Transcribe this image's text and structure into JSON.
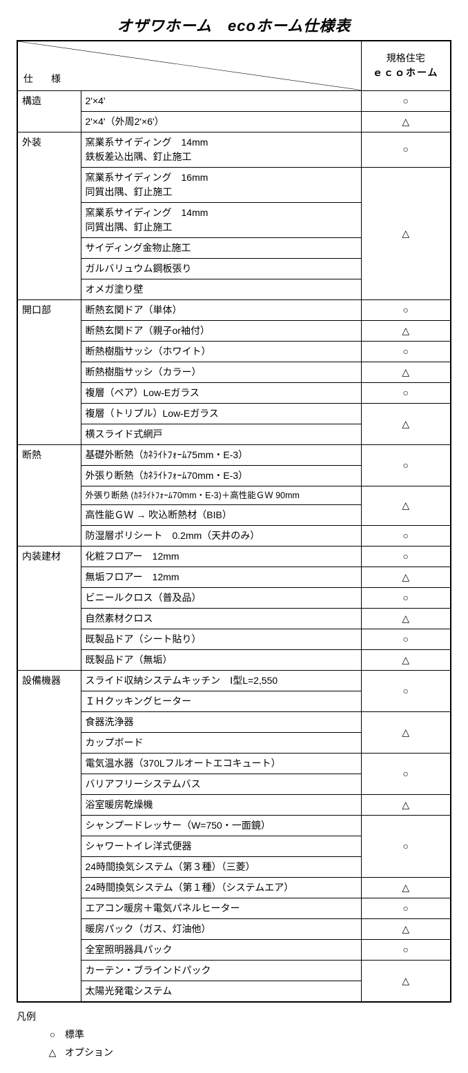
{
  "title": "オザワホーム　ecoホーム仕様表",
  "header": {
    "spec_label": "仕　様",
    "plan_line1": "規格住宅",
    "plan_line2": "ｅｃｏホーム"
  },
  "symbols": {
    "std": "○",
    "opt": "△"
  },
  "sections": [
    {
      "category": "構造",
      "rows": [
        {
          "desc": [
            "2'×4'"
          ],
          "value_sym": "std"
        },
        {
          "desc": [
            "2'×4'（外周2'×6'）"
          ],
          "value_sym": "opt"
        }
      ]
    },
    {
      "category": "外装",
      "rows": [
        {
          "desc": [
            "窯業系サイディング　14mm",
            "鉄板差込出隅、釘止施工"
          ],
          "value_sym": "std"
        },
        {
          "group": [
            [
              "窯業系サイディング　16mm",
              "同質出隅、釘止施工"
            ],
            [
              "窯業系サイディング　14mm",
              "同質出隅、釘止施工"
            ],
            [
              "サイディング金物止施工"
            ],
            [
              "ガルバリュウム鋼板張り"
            ],
            [
              "オメガ塗り壁"
            ]
          ],
          "value_sym": "opt"
        }
      ]
    },
    {
      "category": "開口部",
      "rows": [
        {
          "desc": [
            "断熱玄関ドア（単体）"
          ],
          "value_sym": "std"
        },
        {
          "desc": [
            "断熱玄関ドア（親子or袖付）"
          ],
          "value_sym": "opt"
        },
        {
          "desc": [
            "断熱樹脂サッシ（ホワイト）"
          ],
          "value_sym": "std"
        },
        {
          "desc": [
            "断熱樹脂サッシ（カラー）"
          ],
          "value_sym": "opt"
        },
        {
          "desc": [
            "複層（ペア）Low-Eガラス"
          ],
          "value_sym": "std"
        },
        {
          "group": [
            [
              "複層（トリプル）Low-Eガラス"
            ],
            [
              "横スライド式網戸"
            ]
          ],
          "value_sym": "opt"
        }
      ]
    },
    {
      "category": "断熱",
      "rows": [
        {
          "group": [
            [
              "基礎外断熱（ｶﾈﾗｲﾄﾌｫｰﾑ75mm・E-3）"
            ],
            [
              "外張り断熱（ｶﾈﾗｲﾄﾌｫｰﾑ70mm・E-3）"
            ]
          ],
          "value_sym": "std"
        },
        {
          "group": [
            [
              "外張り断熱 (ｶﾈﾗｲﾄﾌｫｰﾑ70mm・E-3)＋高性能ＧＷ 90mm"
            ],
            [
              "高性能ＧＷ → 吹込断熱材（BIB）"
            ]
          ],
          "value_sym": "opt",
          "small_first": true
        },
        {
          "desc": [
            "防湿層ポリシート　0.2mm（天井のみ）"
          ],
          "value_sym": "std"
        }
      ]
    },
    {
      "category": "内装建材",
      "rows": [
        {
          "desc": [
            "化粧フロアー　12mm"
          ],
          "value_sym": "std"
        },
        {
          "desc": [
            "無垢フロアー　12mm"
          ],
          "value_sym": "opt"
        },
        {
          "desc": [
            "ビニールクロス（普及品）"
          ],
          "value_sym": "std"
        },
        {
          "desc": [
            "自然素材クロス"
          ],
          "value_sym": "opt"
        },
        {
          "desc": [
            "既製品ドア（シート貼り）"
          ],
          "value_sym": "std"
        },
        {
          "desc": [
            "既製品ドア（無垢）"
          ],
          "value_sym": "opt"
        }
      ]
    },
    {
      "category": "設備機器",
      "rows": [
        {
          "group": [
            [
              "スライド収納システムキッチン　Ⅰ型L=2,550"
            ],
            [
              "ＩＨクッキングヒーター"
            ]
          ],
          "value_sym": "std"
        },
        {
          "group": [
            [
              "食器洗浄器"
            ],
            [
              "カップボード"
            ]
          ],
          "value_sym": "opt"
        },
        {
          "group": [
            [
              "電気温水器（370Lフルオートエコキュート）"
            ],
            [
              "バリアフリーシステムバス"
            ]
          ],
          "value_sym": "std"
        },
        {
          "desc": [
            "浴室暖房乾燥機"
          ],
          "value_sym": "opt"
        },
        {
          "group": [
            [
              "シャンプードレッサー（W=750・一面鏡）"
            ],
            [
              "シャワートイレ洋式便器"
            ],
            [
              "24時間換気システム（第３種）（三菱）"
            ]
          ],
          "value_sym": "std"
        },
        {
          "desc": [
            "24時間換気システム（第１種）（システムエア）"
          ],
          "value_sym": "opt"
        },
        {
          "desc": [
            "エアコン暖房＋電気パネルヒーター"
          ],
          "value_sym": "std"
        },
        {
          "desc": [
            "暖房パック（ガス、灯油他）"
          ],
          "value_sym": "opt"
        },
        {
          "desc": [
            "全室照明器具パック"
          ],
          "value_sym": "std"
        },
        {
          "group": [
            [
              "カーテン・ブラインドパック"
            ],
            [
              "太陽光発電システム"
            ]
          ],
          "value_sym": "opt"
        }
      ]
    }
  ],
  "legend": {
    "title": "凡例",
    "items": [
      {
        "sym": "○",
        "label": "標準"
      },
      {
        "sym": "△",
        "label": "オプション"
      }
    ]
  }
}
